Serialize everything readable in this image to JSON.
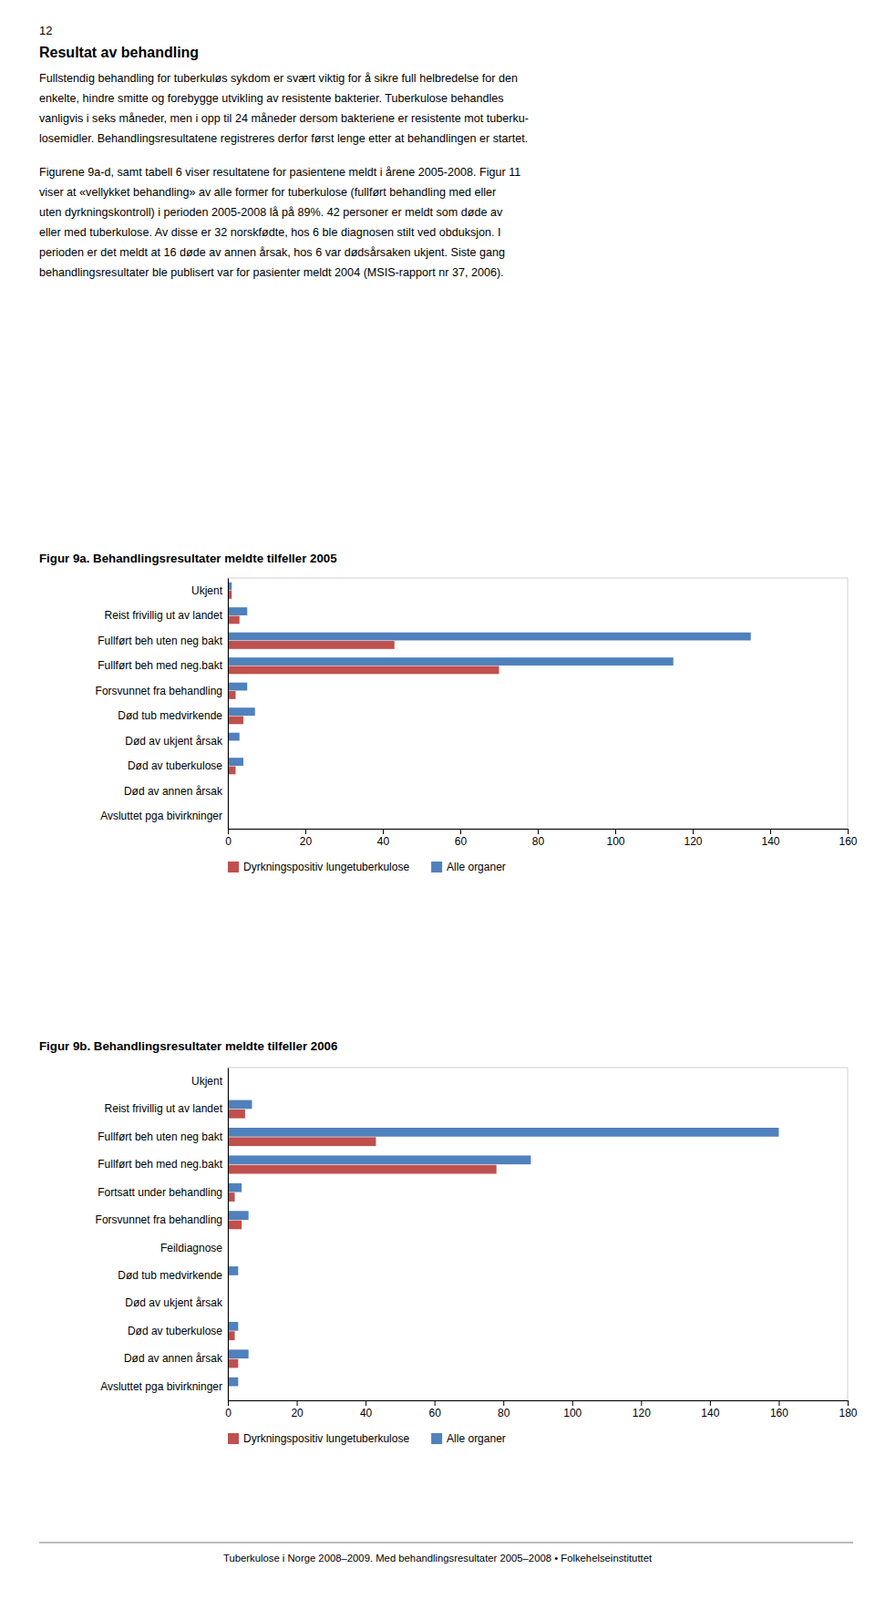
{
  "page_number": "12",
  "section_title": "Resultat av behandling",
  "paragraphs": [
    [
      "Fullstendig behandling for tuberkuløs sykdom er svært viktig for å sikre full helbredelse for den",
      "enkelte, hindre smitte og forebygge utvikling av resistente bakterier. Tuberkulose behandles",
      "vanligvis i seks måneder, men i opp til 24 måneder dersom bakteriene er resistente mot tuberku-",
      "losemidler. Behandlingsresultatene registreres derfor først lenge etter at behandlingen er startet."
    ],
    [
      "Figurene 9a-d, samt tabell 6 viser resultatene for pasientene meldt i årene 2005-2008. Figur 11",
      "viser at «vellykket behandling» av alle former for tuberkulose (fullført behandling med eller",
      "uten dyrkningskontroll) i perioden 2005-2008 lå på 89%. 42 personer er meldt som døde av",
      "eller med tuberkulose. Av disse er 32 norskfødte, hos 6 ble diagnosen stilt ved obduksjon. I",
      "perioden er det meldt at 16 døde av annen årsak, hos 6 var dødsårsaken ukjent. Siste gang",
      "behandlingsresultater ble publisert var for pasienter meldt 2004 (MSIS-rapport nr 37, 2006)."
    ]
  ],
  "footer": "Tuberkulose i Norge 2008–2009. Med behandlingsresultater 2005–2008 • Folkehelseinstituttet",
  "chart_data": [
    {
      "type": "bar",
      "orientation": "horizontal",
      "title": "Figur 9a. Behandlingsresultater meldte tilfeller 2005",
      "categories": [
        "Ukjent",
        "Reist frivillig ut av landet",
        "Fullført beh uten neg bakt",
        "Fullført beh med neg.bakt",
        "Forsvunnet fra behandling",
        "Død tub medvirkende",
        "Død av ukjent årsak",
        "Død av tuberkulose",
        "Død av annen årsak",
        "Avsluttet pga bivirkninger"
      ],
      "series": [
        {
          "name": "Dyrkningspositiv lungetuberkulose",
          "color": "#C0504D",
          "values": [
            1,
            3,
            43,
            70,
            2,
            4,
            0,
            2,
            0,
            0
          ]
        },
        {
          "name": "Alle organer",
          "color": "#4F81BD",
          "values": [
            1,
            5,
            135,
            115,
            5,
            7,
            3,
            4,
            0,
            0
          ]
        }
      ],
      "xlim": [
        0,
        160
      ],
      "xticks": [
        0,
        20,
        40,
        60,
        80,
        100,
        120,
        140,
        160
      ],
      "grid": false,
      "legend": "bottom"
    },
    {
      "type": "bar",
      "orientation": "horizontal",
      "title": "Figur 9b. Behandlingsresultater meldte tilfeller 2006",
      "categories": [
        "Ukjent",
        "Reist frivillig ut av landet",
        "Fullført beh uten neg bakt",
        "Fullført beh med neg.bakt",
        "Fortsatt under behandling",
        "Forsvunnet fra behandling",
        "Feildiagnose",
        "Død tub medvirkende",
        "Død av ukjent årsak",
        "Død av tuberkulose",
        "Død av annen årsak",
        "Avsluttet pga bivirkninger"
      ],
      "series": [
        {
          "name": "Dyrkningspositiv lungetuberkulose",
          "color": "#C0504D",
          "values": [
            0,
            5,
            43,
            78,
            2,
            4,
            0,
            0,
            0,
            2,
            3,
            0
          ]
        },
        {
          "name": "Alle organer",
          "color": "#4F81BD",
          "values": [
            0,
            7,
            160,
            88,
            4,
            6,
            0,
            3,
            0,
            3,
            6,
            3
          ]
        }
      ],
      "xlim": [
        0,
        180
      ],
      "xticks": [
        0,
        20,
        40,
        60,
        80,
        100,
        120,
        140,
        160,
        180
      ],
      "grid": false,
      "legend": "bottom"
    }
  ]
}
